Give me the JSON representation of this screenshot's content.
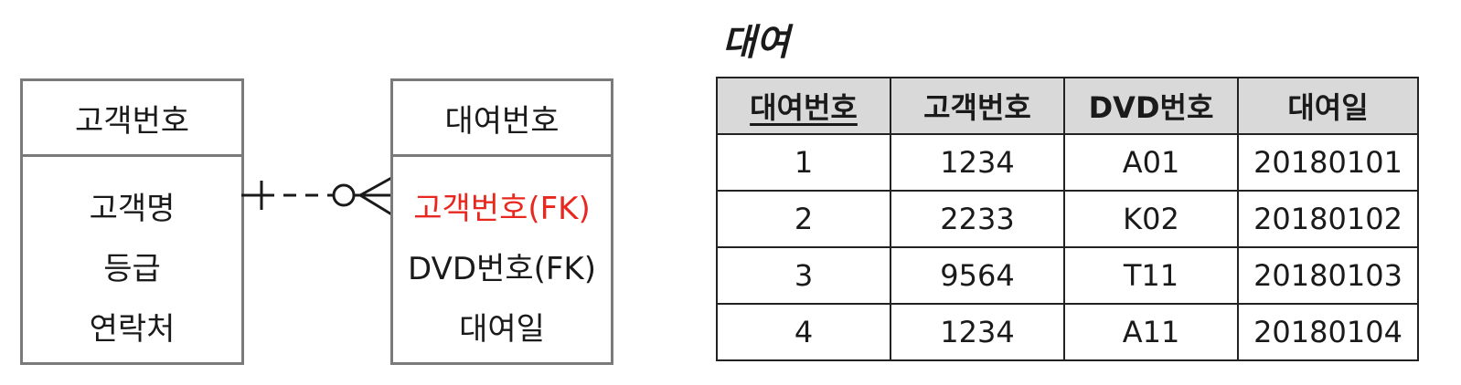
{
  "customer_entity": {
    "key": "고객번호",
    "attributes": [
      "고객명",
      "등급",
      "연락처"
    ]
  },
  "rental_entity": {
    "key": "대여번호",
    "attributes": [
      {
        "text": "고객번호(FK)",
        "color": "#e8281e"
      },
      {
        "text": "DVD번호(FK)",
        "color": "#1a1a1a"
      },
      {
        "text": "대여일",
        "color": "#1a1a1a"
      }
    ]
  },
  "table": {
    "title": "대여",
    "columns": [
      "대여번호",
      "고객번호",
      "DVD번호",
      "대여일"
    ],
    "rows": [
      [
        "1",
        "1234",
        "A01",
        "20180101"
      ],
      [
        "2",
        "2233",
        "K02",
        "20180102"
      ],
      [
        "3",
        "9564",
        "T11",
        "20180103"
      ],
      [
        "4",
        "1234",
        "A11",
        "20180104"
      ]
    ]
  },
  "colors": {
    "border": "#7a7a7a",
    "fk_highlight": "#e8281e",
    "header_bg": "#d9d9d9"
  }
}
